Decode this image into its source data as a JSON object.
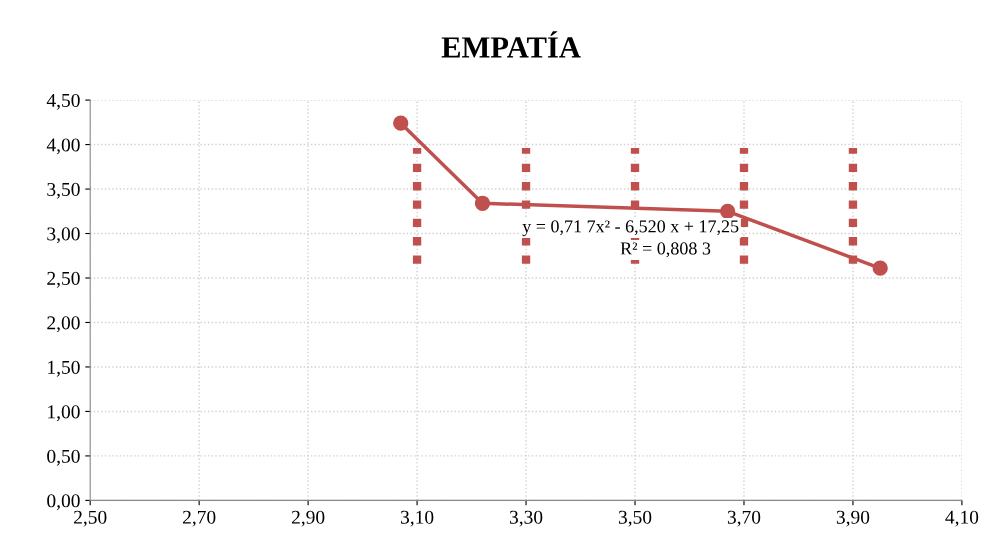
{
  "chart_data": {
    "type": "line",
    "title": "EMPATÍA",
    "xlim": [
      2.5,
      4.1
    ],
    "xticks": [
      {
        "value": 2.5,
        "label": "2,50"
      },
      {
        "value": 2.7,
        "label": "2,70"
      },
      {
        "value": 2.9,
        "label": "2,90"
      },
      {
        "value": 3.1,
        "label": "3,10"
      },
      {
        "value": 3.3,
        "label": "3,30"
      },
      {
        "value": 3.5,
        "label": "3,50"
      },
      {
        "value": 3.7,
        "label": "3,70"
      },
      {
        "value": 3.9,
        "label": "3,90"
      },
      {
        "value": 4.1,
        "label": "4,10"
      }
    ],
    "ylim": [
      0,
      4.5
    ],
    "yticks": [
      {
        "value": 0,
        "label": "0,00"
      },
      {
        "value": 0.5,
        "label": "0,50"
      },
      {
        "value": 1,
        "label": "1,00"
      },
      {
        "value": 1.5,
        "label": "1,50"
      },
      {
        "value": 2,
        "label": "2,00"
      },
      {
        "value": 2.5,
        "label": "2,50"
      },
      {
        "value": 3,
        "label": "3,00"
      },
      {
        "value": 3.5,
        "label": "3,50"
      },
      {
        "value": 4,
        "label": "4,00"
      },
      {
        "value": 4.5,
        "label": "4,50"
      }
    ],
    "grid": true,
    "legend": false,
    "series": [
      {
        "color": "#c0504d",
        "x": [
          3.07,
          3.22,
          3.67,
          3.95
        ],
        "values": [
          4.24,
          3.34,
          3.25,
          2.61
        ],
        "marker": "circle",
        "line_style": "solid"
      },
      {
        "color": "#c0504d",
        "x": [
          3.1,
          3.1
        ],
        "values": [
          2.66,
          3.96
        ],
        "marker": "none",
        "line_style": "dotted"
      },
      {
        "color": "#c0504d",
        "x": [
          3.3,
          3.3
        ],
        "values": [
          2.66,
          3.96
        ],
        "marker": "none",
        "line_style": "dotted"
      },
      {
        "color": "#c0504d",
        "x": [
          3.5,
          3.5
        ],
        "values": [
          2.66,
          3.96
        ],
        "marker": "none",
        "line_style": "dotted"
      },
      {
        "color": "#c0504d",
        "x": [
          3.7,
          3.7
        ],
        "values": [
          2.66,
          3.96
        ],
        "marker": "none",
        "line_style": "dotted"
      },
      {
        "color": "#c0504d",
        "x": [
          3.9,
          3.9
        ],
        "values": [
          2.66,
          3.96
        ],
        "marker": "none",
        "line_style": "dotted"
      }
    ],
    "annotations": [
      "y = 0,71 7x² - 6,520 x + 17,25",
      "R² = 0,808 3"
    ]
  }
}
